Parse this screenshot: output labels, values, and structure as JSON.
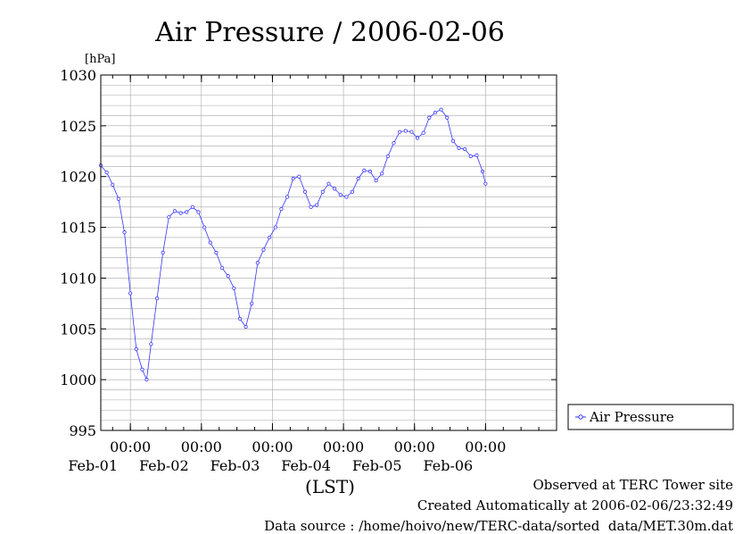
{
  "footer": {
    "site": "Observed at TERC Tower site",
    "created": "Created Automatically at 2006-02-06/23:32:49",
    "source": "Data source : /home/hoivo/new/TERC-data/sorted  data/MET.30m.dat"
  },
  "chart_data": {
    "type": "line",
    "title": "Air Pressure / 2006-02-06",
    "ylabel": "[hPa]",
    "xlabel": "(LST)",
    "ylim": [
      995,
      1030
    ],
    "yticks": [
      995,
      1000,
      1005,
      1010,
      1015,
      1020,
      1025,
      1030
    ],
    "xlim": [
      "2006-01-31T14:00",
      "2006-02-07T00:00"
    ],
    "xticks": [
      {
        "time": "2006-02-01T00:00",
        "time_label": "00:00",
        "date_label": "Feb-01"
      },
      {
        "time": "2006-02-02T00:00",
        "time_label": "00:00",
        "date_label": "Feb-02"
      },
      {
        "time": "2006-02-03T00:00",
        "time_label": "00:00",
        "date_label": "Feb-03"
      },
      {
        "time": "2006-02-04T00:00",
        "time_label": "00:00",
        "date_label": "Feb-04"
      },
      {
        "time": "2006-02-05T00:00",
        "time_label": "00:00",
        "date_label": "Feb-05"
      },
      {
        "time": "2006-02-06T00:00",
        "time_label": "00:00",
        "date_label": "Feb-06"
      }
    ],
    "minor_ticks_per_day": 4,
    "grid": true,
    "legend": "right",
    "series": [
      {
        "name": "Air Pressure",
        "color": "#3333ff",
        "marker": "open-circle",
        "points": [
          [
            "2006-01-31T14:00",
            1021.1
          ],
          [
            "2006-01-31T16:00",
            1020.4
          ],
          [
            "2006-01-31T18:00",
            1019.2
          ],
          [
            "2006-01-31T20:00",
            1017.8
          ],
          [
            "2006-01-31T22:00",
            1014.5
          ],
          [
            "2006-02-01T00:00",
            1008.5
          ],
          [
            "2006-02-01T02:00",
            1003.0
          ],
          [
            "2006-02-01T04:00",
            1001.0
          ],
          [
            "2006-02-01T05:30",
            1000.0
          ],
          [
            "2006-02-01T07:00",
            1003.5
          ],
          [
            "2006-02-01T09:00",
            1008.0
          ],
          [
            "2006-02-01T11:00",
            1012.5
          ],
          [
            "2006-02-01T13:00",
            1016.0
          ],
          [
            "2006-02-01T15:00",
            1016.6
          ],
          [
            "2006-02-01T17:00",
            1016.4
          ],
          [
            "2006-02-01T19:00",
            1016.5
          ],
          [
            "2006-02-01T21:00",
            1017.0
          ],
          [
            "2006-02-01T23:00",
            1016.5
          ],
          [
            "2006-02-02T01:00",
            1015.0
          ],
          [
            "2006-02-02T03:00",
            1013.5
          ],
          [
            "2006-02-02T05:00",
            1012.5
          ],
          [
            "2006-02-02T07:00",
            1011.0
          ],
          [
            "2006-02-02T09:00",
            1010.2
          ],
          [
            "2006-02-02T11:00",
            1009.0
          ],
          [
            "2006-02-02T13:00",
            1006.0
          ],
          [
            "2006-02-02T15:00",
            1005.2
          ],
          [
            "2006-02-02T17:00",
            1007.5
          ],
          [
            "2006-02-02T19:00",
            1011.5
          ],
          [
            "2006-02-02T21:00",
            1012.8
          ],
          [
            "2006-02-02T23:00",
            1014.0
          ],
          [
            "2006-02-03T01:00",
            1015.0
          ],
          [
            "2006-02-03T03:00",
            1016.8
          ],
          [
            "2006-02-03T05:00",
            1018.0
          ],
          [
            "2006-02-03T07:00",
            1019.8
          ],
          [
            "2006-02-03T09:00",
            1020.0
          ],
          [
            "2006-02-03T11:00",
            1018.5
          ],
          [
            "2006-02-03T13:00",
            1017.0
          ],
          [
            "2006-02-03T15:00",
            1017.2
          ],
          [
            "2006-02-03T17:00",
            1018.5
          ],
          [
            "2006-02-03T19:00",
            1019.3
          ],
          [
            "2006-02-03T21:00",
            1018.8
          ],
          [
            "2006-02-03T23:00",
            1018.2
          ],
          [
            "2006-02-04T01:00",
            1018.0
          ],
          [
            "2006-02-04T03:00",
            1018.5
          ],
          [
            "2006-02-04T05:00",
            1019.8
          ],
          [
            "2006-02-04T07:00",
            1020.6
          ],
          [
            "2006-02-04T09:00",
            1020.5
          ],
          [
            "2006-02-04T11:00",
            1019.6
          ],
          [
            "2006-02-04T13:00",
            1020.3
          ],
          [
            "2006-02-04T15:00",
            1022.0
          ],
          [
            "2006-02-04T17:00",
            1023.3
          ],
          [
            "2006-02-04T19:00",
            1024.4
          ],
          [
            "2006-02-04T21:00",
            1024.5
          ],
          [
            "2006-02-04T23:00",
            1024.4
          ],
          [
            "2006-02-05T01:00",
            1023.8
          ],
          [
            "2006-02-05T03:00",
            1024.3
          ],
          [
            "2006-02-05T05:00",
            1025.8
          ],
          [
            "2006-02-05T07:00",
            1026.3
          ],
          [
            "2006-02-05T09:00",
            1026.6
          ],
          [
            "2006-02-05T11:00",
            1025.8
          ],
          [
            "2006-02-05T13:00",
            1023.5
          ],
          [
            "2006-02-05T15:00",
            1022.8
          ],
          [
            "2006-02-05T17:00",
            1022.7
          ],
          [
            "2006-02-05T19:00",
            1022.0
          ],
          [
            "2006-02-05T21:00",
            1022.1
          ],
          [
            "2006-02-05T23:00",
            1020.5
          ],
          [
            "2006-02-06T00:00",
            1019.3
          ]
        ]
      }
    ]
  }
}
